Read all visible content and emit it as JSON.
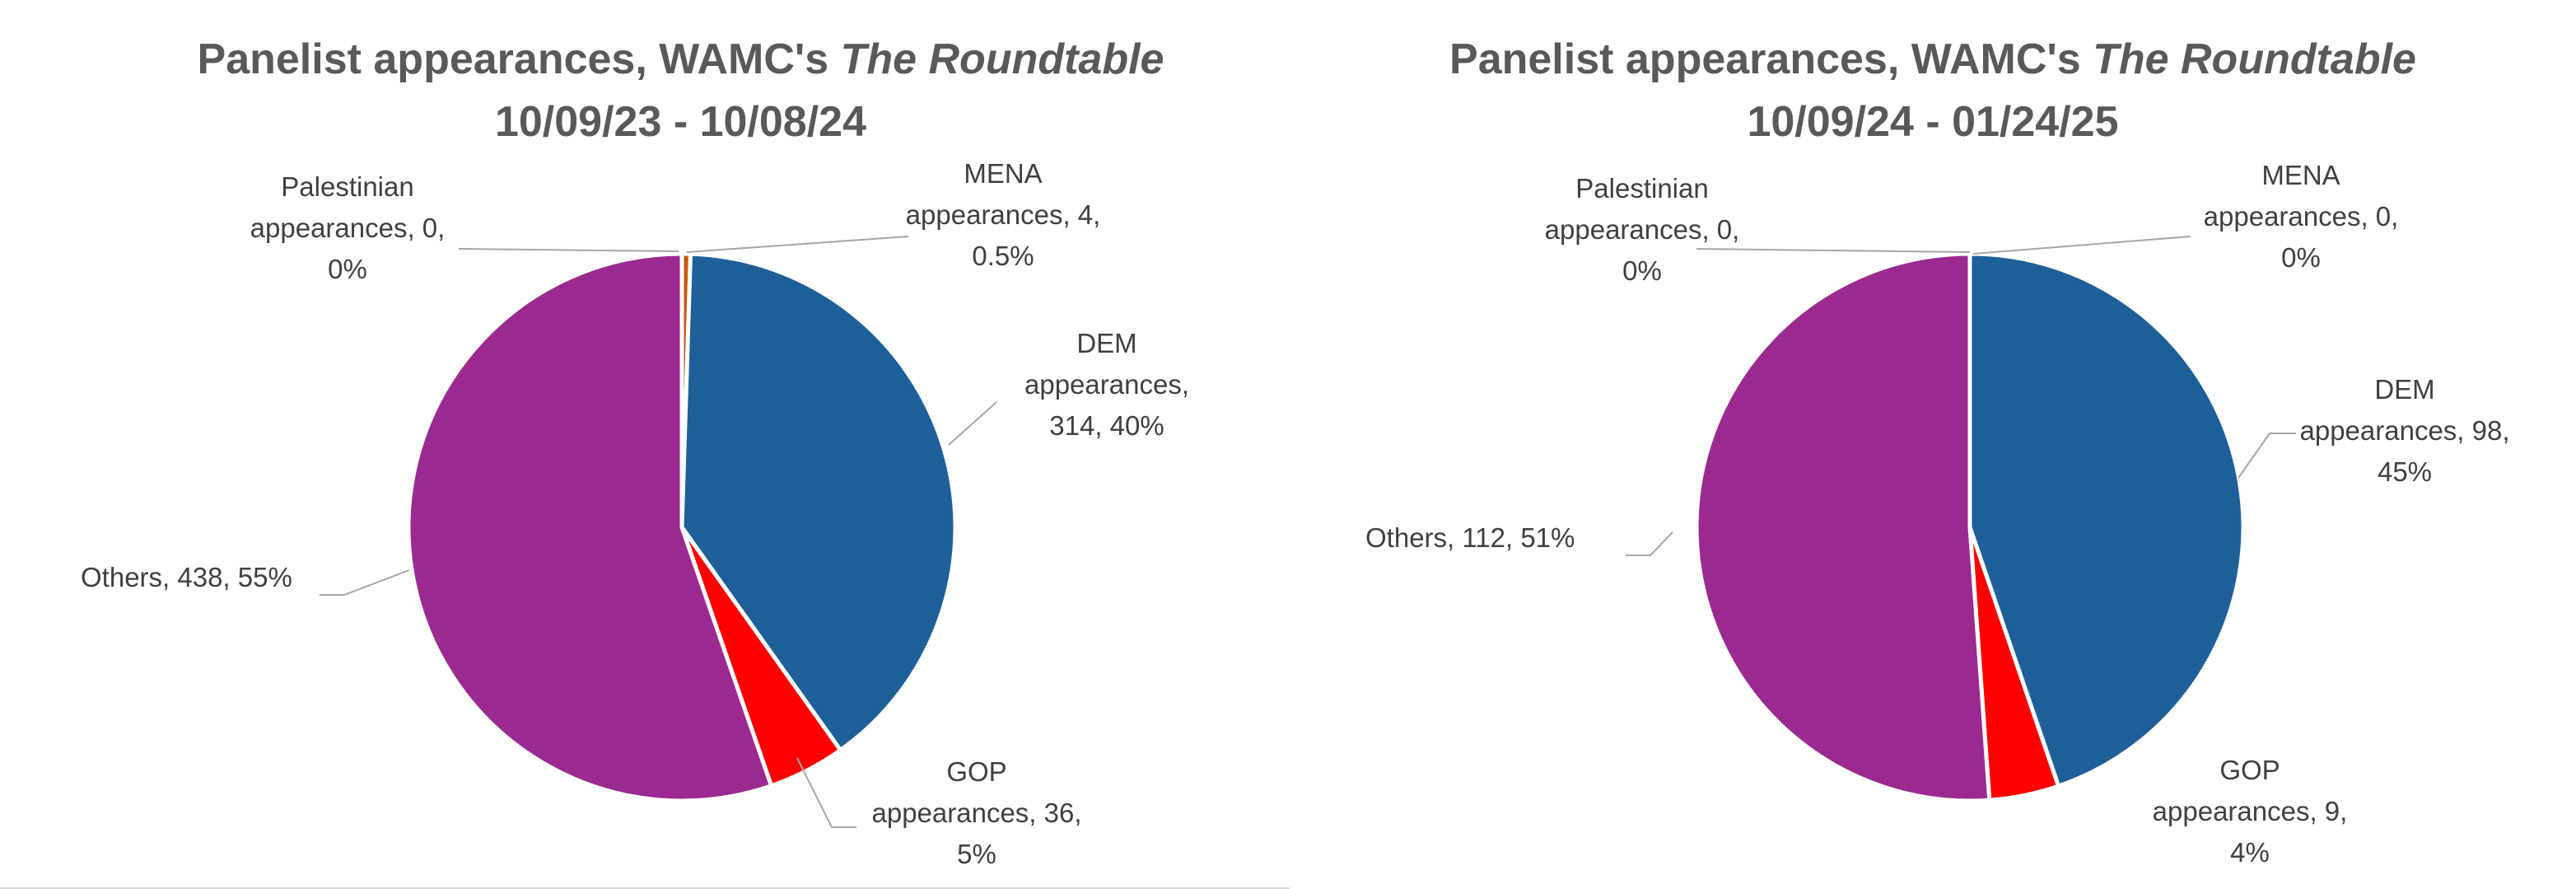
{
  "chart_data": [
    {
      "type": "pie",
      "title_prefix": "Panelist appearances, WAMC's ",
      "title_italic": "The Roundtable",
      "subtitle": "10/09/23 - 10/08/24",
      "slices": [
        {
          "key": "mena",
          "label_lines": [
            "MENA",
            "appearances, 4,",
            "0.5%"
          ],
          "value": 4,
          "color": "#c55a11"
        },
        {
          "key": "dem",
          "label_lines": [
            "DEM",
            "appearances,",
            "314, 40%"
          ],
          "value": 314,
          "color": "#1f5f99"
        },
        {
          "key": "gop",
          "label_lines": [
            "GOP",
            "appearances, 36,",
            "5%"
          ],
          "value": 36,
          "color": "#ff0000"
        },
        {
          "key": "others",
          "label_lines": [
            "Others, 438, 55%"
          ],
          "value": 438,
          "color": "#9b2a90"
        },
        {
          "key": "palestinian",
          "label_lines": [
            "Palestinian",
            "appearances, 0,",
            "0%"
          ],
          "value": 0,
          "color": "#70ad47"
        }
      ]
    },
    {
      "type": "pie",
      "title_prefix": "Panelist appearances, WAMC's ",
      "title_italic": "The Roundtable",
      "subtitle": "10/09/24 - 01/24/25",
      "slices": [
        {
          "key": "mena",
          "label_lines": [
            "MENA",
            "appearances, 0,",
            "0%"
          ],
          "value": 0,
          "color": "#c55a11"
        },
        {
          "key": "dem",
          "label_lines": [
            "DEM",
            "appearances, 98,",
            "45%"
          ],
          "value": 98,
          "color": "#1f5f99"
        },
        {
          "key": "gop",
          "label_lines": [
            "GOP",
            "appearances, 9,",
            "4%"
          ],
          "value": 9,
          "color": "#ff0000"
        },
        {
          "key": "others",
          "label_lines": [
            "Others, 112, 51%"
          ],
          "value": 112,
          "color": "#9b2a90"
        },
        {
          "key": "palestinian",
          "label_lines": [
            "Palestinian",
            "appearances, 0,",
            "0%"
          ],
          "value": 0,
          "color": "#70ad47"
        }
      ]
    }
  ]
}
